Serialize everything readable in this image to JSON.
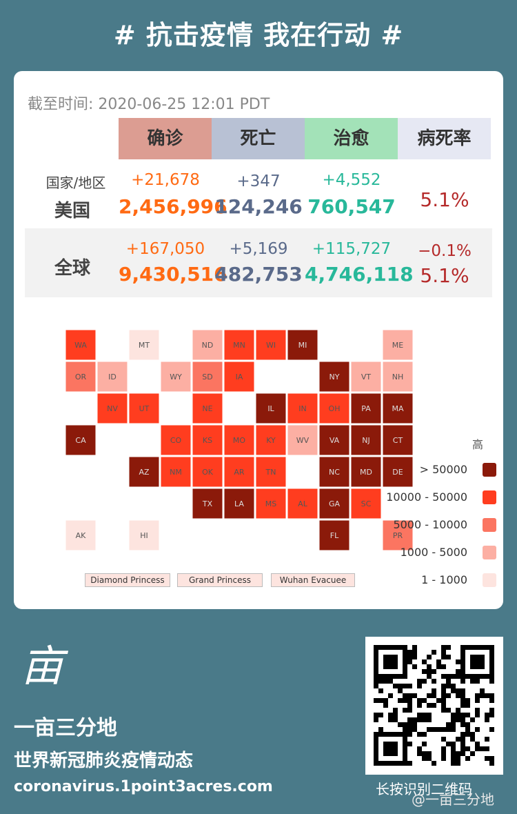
{
  "header": {
    "title": "# 抗击疫情 我在行动 #"
  },
  "card": {
    "timestamp": "截至时间: 2020-06-25  12:01   PDT",
    "columns": [
      {
        "label": "确诊",
        "color": "#dc9d92"
      },
      {
        "label": "死亡",
        "color": "#b8c1d4"
      },
      {
        "label": "治愈",
        "color": "#a3e2b8"
      },
      {
        "label": "病死率",
        "color": "#e6e8f3"
      }
    ],
    "us": {
      "region_label": "国家/地区",
      "name": "美国",
      "confirmed_delta": "+21,678",
      "confirmed": "2,456,996",
      "deaths_delta": "+347",
      "deaths": "124,246",
      "recovered_delta": "+4,552",
      "recovered": "760,547",
      "cfr": "5.1%"
    },
    "global": {
      "name": "全球",
      "confirmed_delta": "+167,050",
      "confirmed": "9,430,516",
      "deaths_delta": "+5,169",
      "deaths": "482,753",
      "recovered_delta": "+115,727",
      "recovered": "4,746,118",
      "cfr_delta": "−0.1%",
      "cfr": "5.1%"
    },
    "map": {
      "states": [
        "WA",
        "MT",
        "ND",
        "MN",
        "ID",
        "OR",
        "WY",
        "SD",
        "WI",
        "MI",
        "ME",
        "VT",
        "NH",
        "NY",
        "MA",
        "NE",
        "IA",
        "IL",
        "IN",
        "OH",
        "PA",
        "NJ",
        "CT",
        "NV",
        "UT",
        "CO",
        "KS",
        "MO",
        "KY",
        "WV",
        "VA",
        "MD",
        "DE",
        "CA",
        "OK",
        "AR",
        "TN",
        "NC",
        "AZ",
        "NM",
        "TX",
        "MS",
        "AL",
        "GA",
        "SC",
        "LA",
        "FL",
        "AK",
        "HI",
        "PR"
      ],
      "legend_title": "高",
      "legend": [
        {
          "label": "> 50000",
          "color": "#8b1a0a"
        },
        {
          "label": "10000 - 50000",
          "color": "#ff3d1f"
        },
        {
          "label": "5000 - 10000",
          "color": "#fb7561"
        },
        {
          "label": "1000 - 5000",
          "color": "#fcafa3"
        },
        {
          "label": "1 - 1000",
          "color": "#fde4df"
        }
      ],
      "tags": [
        "Diamond Princess",
        "Grand Princess",
        "Wuhan Evacuee"
      ]
    }
  },
  "footer": {
    "brand": "一亩三分地",
    "subtitle": "世界新冠肺炎疫情动态",
    "url": "coronavirus.1point3acres.com",
    "qr_caption": "长按识别二维码",
    "watermark": "@一亩三分地",
    "logo_glyph": "亩"
  }
}
